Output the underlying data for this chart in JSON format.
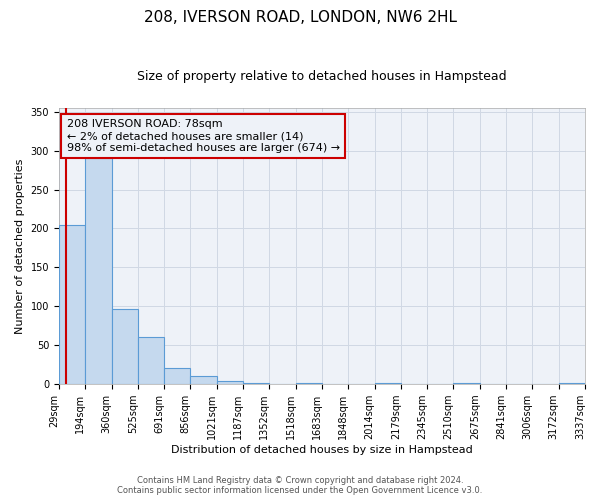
{
  "title": "208, IVERSON ROAD, LONDON, NW6 2HL",
  "subtitle": "Size of property relative to detached houses in Hampstead",
  "xlabel": "Distribution of detached houses by size in Hampstead",
  "ylabel": "Number of detached properties",
  "bar_values": [
    205,
    290,
    97,
    60,
    21,
    11,
    4,
    1,
    0,
    1,
    0,
    0,
    1,
    0,
    0,
    1,
    0,
    0,
    0,
    2
  ],
  "bar_labels": [
    "29sqm",
    "194sqm",
    "360sqm",
    "525sqm",
    "691sqm",
    "856sqm",
    "1021sqm",
    "1187sqm",
    "1352sqm",
    "1518sqm",
    "1683sqm",
    "1848sqm",
    "2014sqm",
    "2179sqm",
    "2345sqm",
    "2510sqm",
    "2675sqm",
    "2841sqm",
    "3006sqm",
    "3172sqm",
    "3337sqm"
  ],
  "bar_color": "#c5d9ee",
  "bar_edgecolor": "#5b9bd5",
  "bar_linewidth": 0.8,
  "ylim": [
    0,
    355
  ],
  "yticks": [
    0,
    50,
    100,
    150,
    200,
    250,
    300,
    350
  ],
  "grid_color": "#d0d8e4",
  "background_color": "#ffffff",
  "plot_bg_color": "#eef2f8",
  "vline_color": "#cc0000",
  "annotation_text": "208 IVERSON ROAD: 78sqm\n← 2% of detached houses are smaller (14)\n98% of semi-detached houses are larger (674) →",
  "annotation_box_edgecolor": "#cc0000",
  "footer_line1": "Contains HM Land Registry data © Crown copyright and database right 2024.",
  "footer_line2": "Contains public sector information licensed under the Open Government Licence v3.0.",
  "title_fontsize": 11,
  "subtitle_fontsize": 9,
  "label_fontsize": 8,
  "tick_fontsize": 7,
  "annotation_fontsize": 8,
  "footer_fontsize": 6
}
